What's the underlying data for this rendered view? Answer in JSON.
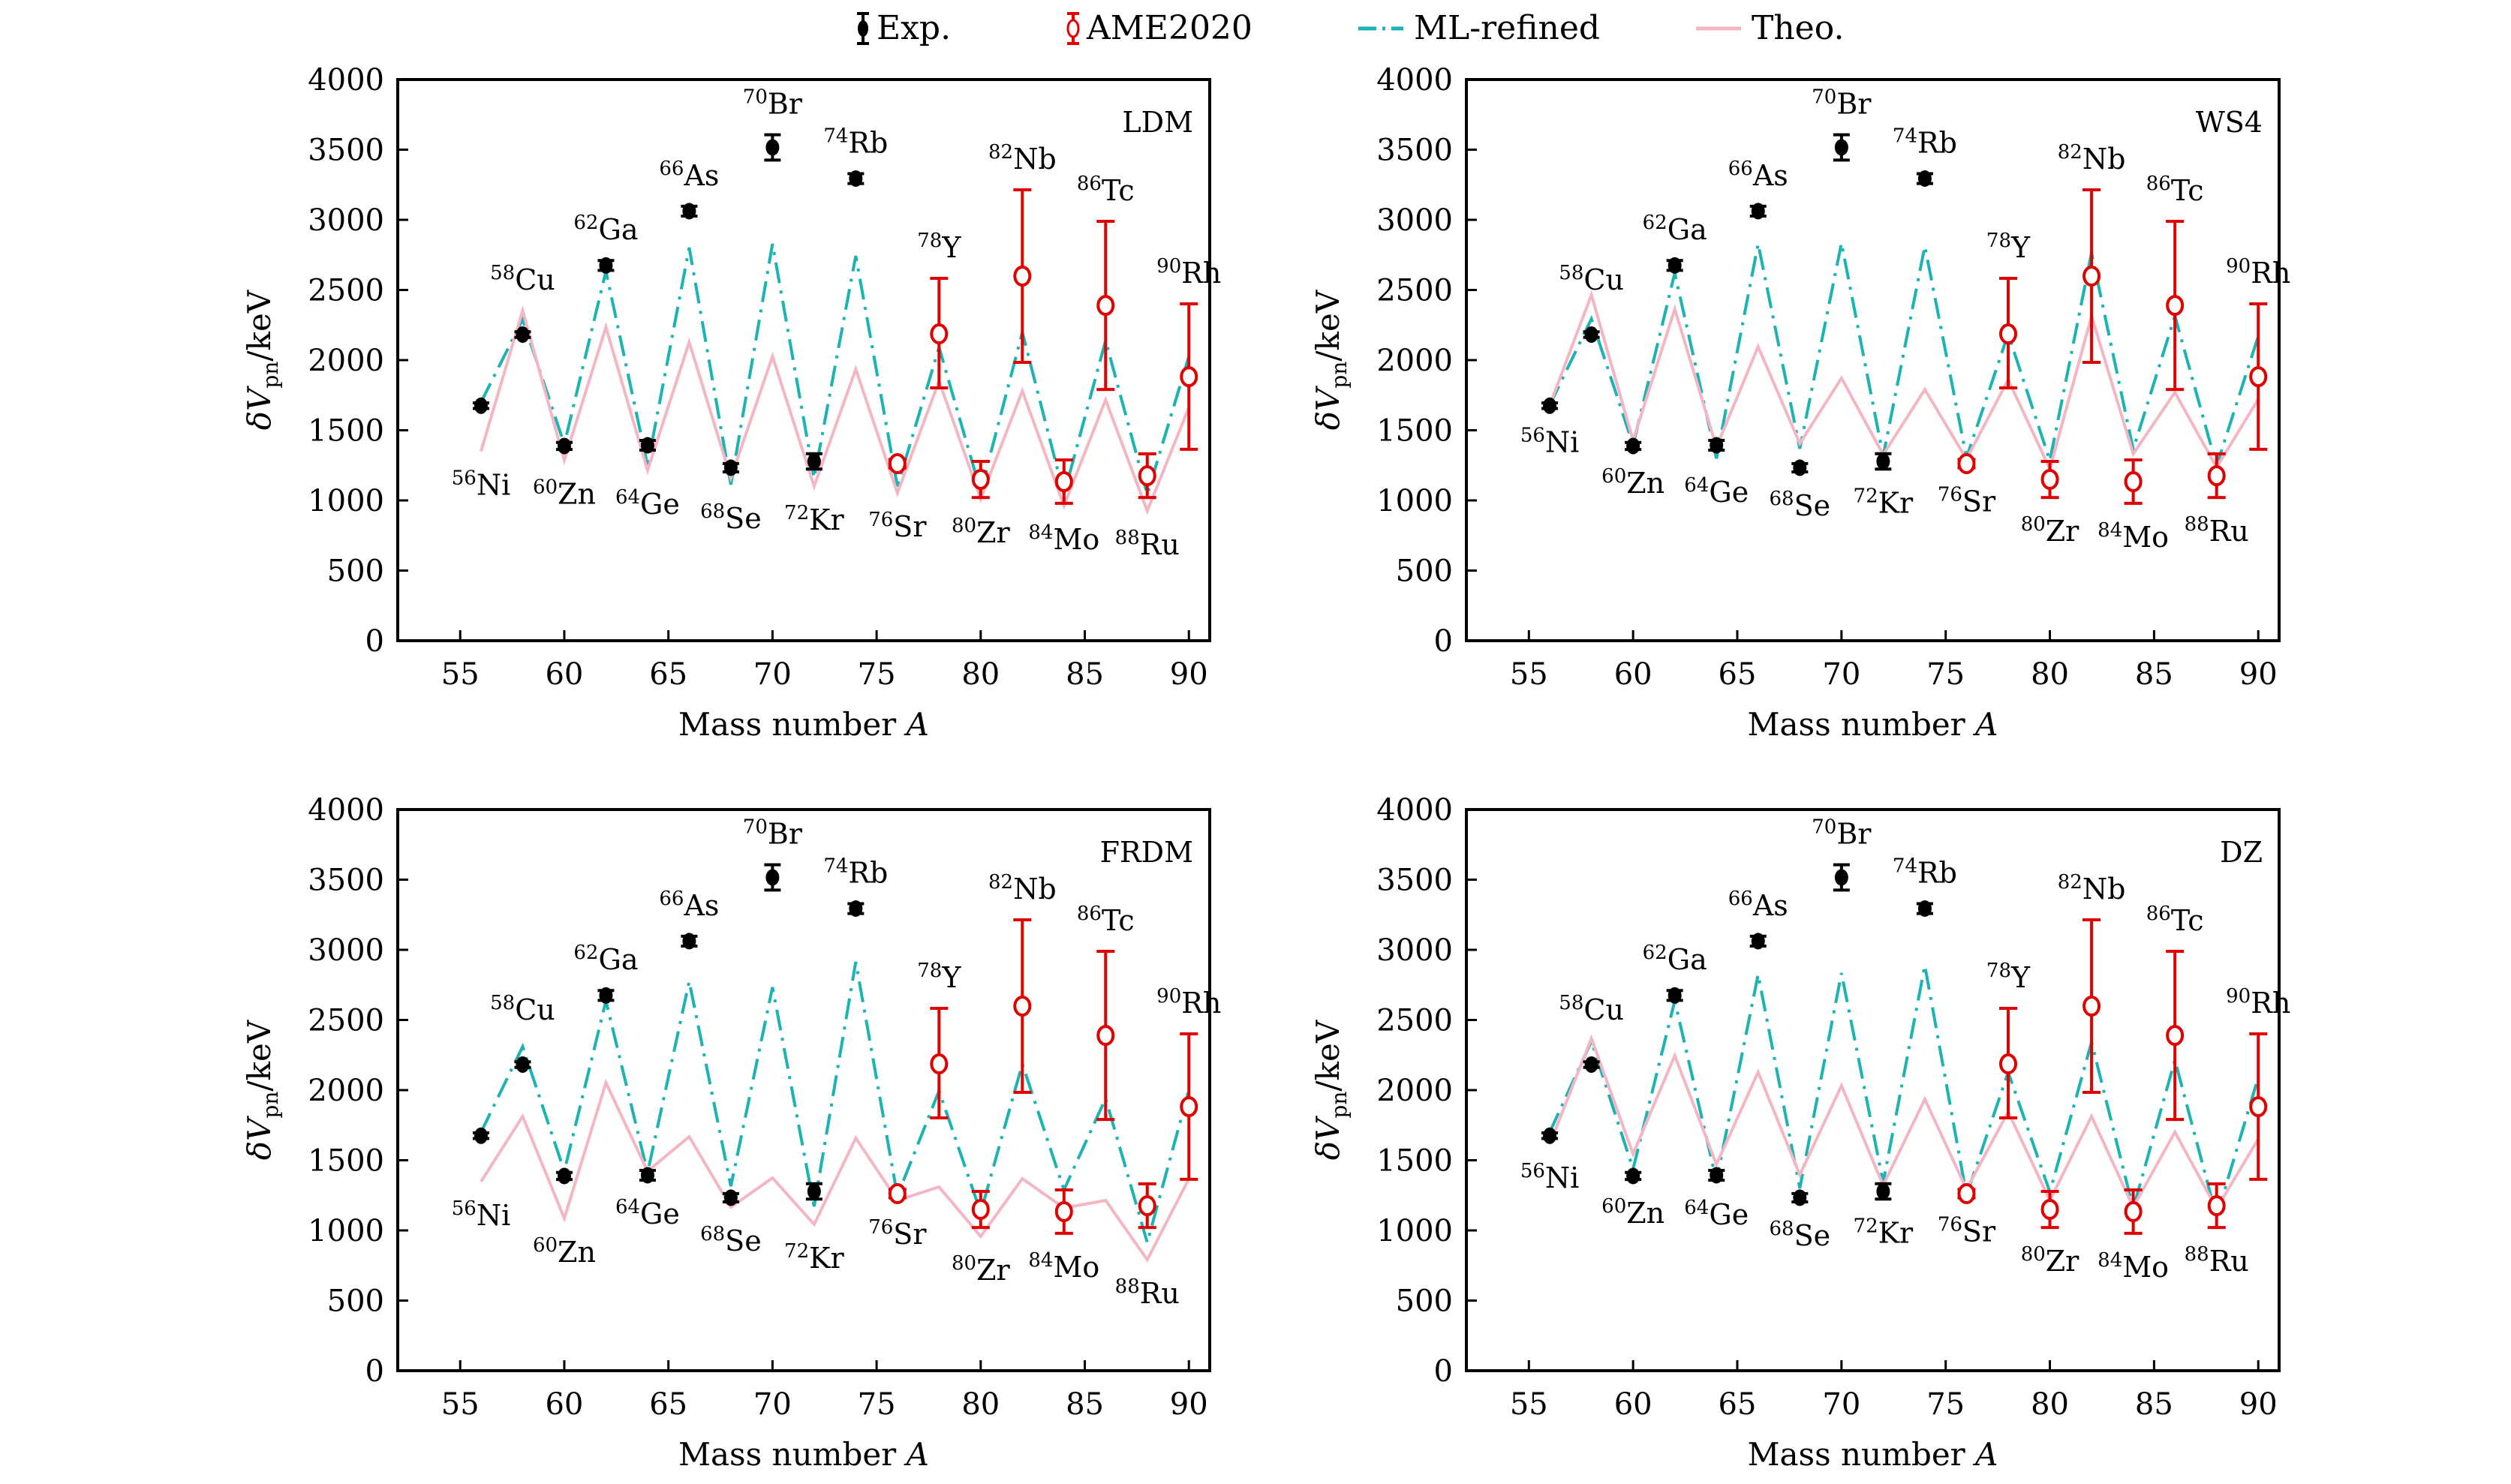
{
  "legend": {
    "placement": "top-center",
    "entries": [
      {
        "key": "exp",
        "label": "Exp.",
        "color": "#000000",
        "style": "filled-circle-errorbar"
      },
      {
        "key": "ame",
        "label": "AME2020",
        "color": "#e00000",
        "style": "open-circle-errorbar"
      },
      {
        "key": "ml",
        "label": "ML-refined",
        "color": "#1bb3b3",
        "style": "dash-dot-line"
      },
      {
        "key": "theo",
        "label": "Theo.",
        "color": "#f4b6c2",
        "style": "solid-line"
      }
    ]
  },
  "chart_data": [
    {
      "type": "line",
      "title": "LDM",
      "model_label": "LDM",
      "xlabel": "Mass number A",
      "ylabel": "δV_pn/keV",
      "ylabel_main": "δV",
      "ylabel_sub": "pn",
      "ylabel_tail": "/keV",
      "xlim": [
        52,
        91
      ],
      "ylim": [
        0,
        4000
      ],
      "xticks": [
        55,
        60,
        65,
        70,
        75,
        80,
        85,
        90
      ],
      "yticks": [
        0,
        500,
        1000,
        1500,
        2000,
        2500,
        3000,
        3500,
        4000
      ],
      "grid": false,
      "series": [
        {
          "name": "ML-refined",
          "key": "ml",
          "x": [
            56,
            58,
            60,
            62,
            64,
            66,
            68,
            70,
            72,
            74,
            76,
            78,
            80,
            82,
            84,
            86,
            88,
            90
          ],
          "y": [
            1700,
            2290,
            1400,
            2634,
            1250,
            2802,
            1113,
            2829,
            1160,
            2743,
            1100,
            2091,
            1064,
            2198,
            1043,
            2139,
            1043,
            2027
          ]
        },
        {
          "name": "Theo.",
          "key": "theo",
          "x": [
            56,
            58,
            60,
            62,
            64,
            66,
            68,
            70,
            72,
            74,
            76,
            78,
            80,
            82,
            84,
            86,
            88,
            90
          ],
          "y": [
            1350,
            2353,
            1286,
            2235,
            1214,
            2128,
            1160,
            2027,
            1101,
            1936,
            1053,
            1850,
            1011,
            1781,
            963,
            1717,
            925,
            1663
          ]
        }
      ],
      "label_offsets": {
        "56": "below",
        "58": "above",
        "60": "below",
        "62": "above",
        "64": "below",
        "66": "above",
        "68": "below",
        "70": "above",
        "72": "below",
        "74": "above",
        "76": "below",
        "78": "above",
        "80": "below",
        "82": "above",
        "84": "below",
        "86": "above",
        "88": "below",
        "90": "above"
      }
    },
    {
      "type": "line",
      "title": "WS4",
      "model_label": "WS4",
      "xlabel": "Mass number A",
      "ylabel": "δV_pn/keV",
      "ylabel_main": "δV",
      "ylabel_sub": "pn",
      "ylabel_tail": "/keV",
      "xlim": [
        52,
        91
      ],
      "ylim": [
        0,
        4000
      ],
      "xticks": [
        55,
        60,
        65,
        70,
        75,
        80,
        85,
        90
      ],
      "yticks": [
        0,
        500,
        1000,
        1500,
        2000,
        2500,
        3000,
        3500,
        4000
      ],
      "grid": false,
      "series": [
        {
          "name": "ML-refined",
          "key": "ml",
          "x": [
            56,
            58,
            60,
            62,
            64,
            66,
            68,
            70,
            72,
            74,
            76,
            78,
            80,
            82,
            84,
            86,
            88,
            90
          ],
          "y": [
            1680,
            2294,
            1396,
            2620,
            1299,
            2829,
            1369,
            2834,
            1315,
            2812,
            1305,
            2187,
            1283,
            2765,
            1364,
            2315,
            1246,
            2171
          ]
        },
        {
          "name": "Theo.",
          "key": "theo",
          "x": [
            56,
            58,
            60,
            62,
            64,
            66,
            68,
            70,
            72,
            74,
            76,
            78,
            80,
            82,
            84,
            86,
            88,
            90
          ],
          "y": [
            1680,
            2465,
            1428,
            2364,
            1380,
            2096,
            1406,
            1872,
            1326,
            1791,
            1294,
            1861,
            1225,
            2315,
            1332,
            1770,
            1235,
            1722
          ]
        }
      ]
    },
    {
      "type": "line",
      "title": "FRDM",
      "model_label": "FRDM",
      "xlabel": "Mass number A",
      "ylabel": "δV_pn/keV",
      "ylabel_main": "δV",
      "ylabel_sub": "pn",
      "ylabel_tail": "/keV",
      "xlim": [
        52,
        91
      ],
      "ylim": [
        0,
        4000
      ],
      "xticks": [
        55,
        60,
        65,
        70,
        75,
        80,
        85,
        90
      ],
      "yticks": [
        0,
        500,
        1000,
        1500,
        2000,
        2500,
        3000,
        3500,
        4000
      ],
      "grid": false,
      "series": [
        {
          "name": "ML-refined",
          "key": "ml",
          "x": [
            56,
            58,
            60,
            62,
            64,
            66,
            68,
            70,
            72,
            74,
            76,
            78,
            80,
            82,
            84,
            86,
            88,
            90
          ],
          "y": [
            1700,
            2310,
            1422,
            2636,
            1412,
            2775,
            1315,
            2733,
            1171,
            2914,
            1246,
            1995,
            1128,
            2187,
            1289,
            1941,
            914,
            2000
          ]
        },
        {
          "name": "Theo.",
          "key": "theo",
          "x": [
            56,
            58,
            60,
            62,
            64,
            66,
            68,
            70,
            72,
            74,
            76,
            78,
            80,
            82,
            84,
            86,
            88,
            90
          ],
          "y": [
            1348,
            1813,
            1086,
            2053,
            1422,
            1668,
            1166,
            1374,
            1043,
            1658,
            1214,
            1310,
            957,
            1369,
            1160,
            1214,
            791,
            1369
          ]
        }
      ]
    },
    {
      "type": "line",
      "title": "DZ",
      "model_label": "DZ",
      "xlabel": "Mass number A",
      "ylabel": "δV_pn/keV",
      "ylabel_main": "δV",
      "ylabel_sub": "pn",
      "ylabel_tail": "/keV",
      "xlim": [
        52,
        91
      ],
      "ylim": [
        0,
        4000
      ],
      "xticks": [
        55,
        60,
        65,
        70,
        75,
        80,
        85,
        90
      ],
      "yticks": [
        0,
        500,
        1000,
        1500,
        2000,
        2500,
        3000,
        3500,
        4000
      ],
      "grid": false,
      "series": [
        {
          "name": "ML-refined",
          "key": "ml",
          "x": [
            56,
            58,
            60,
            62,
            64,
            66,
            68,
            70,
            72,
            74,
            76,
            78,
            80,
            82,
            84,
            86,
            88,
            90
          ],
          "y": [
            1700,
            2348,
            1438,
            2636,
            1353,
            2824,
            1300,
            2834,
            1342,
            2888,
            1251,
            2128,
            1273,
            2342,
            1155,
            2214,
            1096,
            2091
          ]
        },
        {
          "name": "Theo.",
          "key": "theo",
          "x": [
            56,
            58,
            60,
            62,
            64,
            66,
            68,
            70,
            72,
            74,
            76,
            78,
            80,
            82,
            84,
            86,
            88,
            90
          ],
          "y": [
            1615,
            2369,
            1545,
            2246,
            1471,
            2128,
            1396,
            2032,
            1321,
            1936,
            1294,
            1845,
            1214,
            1813,
            1166,
            1701,
            1155,
            1652
          ]
        }
      ]
    }
  ],
  "experimental": [
    {
      "A": 56,
      "iso": "Ni",
      "mass": "56",
      "y": 1675,
      "err": 20
    },
    {
      "A": 58,
      "iso": "Cu",
      "mass": "58",
      "y": 2182,
      "err": 20
    },
    {
      "A": 60,
      "iso": "Zn",
      "mass": "60",
      "y": 1388,
      "err": 25
    },
    {
      "A": 62,
      "iso": "Ga",
      "mass": "62",
      "y": 2675,
      "err": 35
    },
    {
      "A": 64,
      "iso": "Ge",
      "mass": "64",
      "y": 1393,
      "err": 35
    },
    {
      "A": 66,
      "iso": "As",
      "mass": "66",
      "y": 3062,
      "err": 35
    },
    {
      "A": 68,
      "iso": "Se",
      "mass": "68",
      "y": 1233,
      "err": 30
    },
    {
      "A": 70,
      "iso": "Br",
      "mass": "70",
      "y": 3516,
      "err": 90
    },
    {
      "A": 72,
      "iso": "Kr",
      "mass": "72",
      "y": 1278,
      "err": 55
    },
    {
      "A": 74,
      "iso": "Rb",
      "mass": "74",
      "y": 3294,
      "err": 35
    }
  ],
  "ame2020": [
    {
      "A": 76,
      "iso": "Sr",
      "mass": "76",
      "y": 1262,
      "lo": 1232,
      "hi": 1292
    },
    {
      "A": 78,
      "iso": "Y",
      "mass": "78",
      "y": 2187,
      "lo": 1802,
      "hi": 2583
    },
    {
      "A": 80,
      "iso": "Zr",
      "mass": "80",
      "y": 1150,
      "lo": 1021,
      "hi": 1278
    },
    {
      "A": 82,
      "iso": "Nb",
      "mass": "82",
      "y": 2599,
      "lo": 1984,
      "hi": 3214
    },
    {
      "A": 84,
      "iso": "Mo",
      "mass": "84",
      "y": 1134,
      "lo": 979,
      "hi": 1289
    },
    {
      "A": 86,
      "iso": "Tc",
      "mass": "86",
      "y": 2390,
      "lo": 1791,
      "hi": 2989
    },
    {
      "A": 88,
      "iso": "Ru",
      "mass": "88",
      "y": 1176,
      "lo": 1021,
      "hi": 1332
    },
    {
      "A": 90,
      "iso": "Rh",
      "mass": "90",
      "y": 1882,
      "lo": 1364,
      "hi": 2401
    }
  ],
  "isotope_labels": {
    "56": {
      "mass": "56",
      "sym": "Ni"
    },
    "58": {
      "mass": "58",
      "sym": "Cu"
    },
    "60": {
      "mass": "60",
      "sym": "Zn"
    },
    "62": {
      "mass": "62",
      "sym": "Ga"
    },
    "64": {
      "mass": "64",
      "sym": "Ge"
    },
    "66": {
      "mass": "66",
      "sym": "As"
    },
    "68": {
      "mass": "68",
      "sym": "Se"
    },
    "70": {
      "mass": "70",
      "sym": "Br"
    },
    "72": {
      "mass": "72",
      "sym": "Kr"
    },
    "74": {
      "mass": "74",
      "sym": "Rb"
    },
    "76": {
      "mass": "76",
      "sym": "Sr"
    },
    "78": {
      "mass": "78",
      "sym": "Y"
    },
    "80": {
      "mass": "80",
      "sym": "Zr"
    },
    "82": {
      "mass": "82",
      "sym": "Nb"
    },
    "84": {
      "mass": "84",
      "sym": "Mo"
    },
    "86": {
      "mass": "86",
      "sym": "Tc"
    },
    "88": {
      "mass": "88",
      "sym": "Ru"
    },
    "90": {
      "mass": "90",
      "sym": "Rh"
    }
  }
}
